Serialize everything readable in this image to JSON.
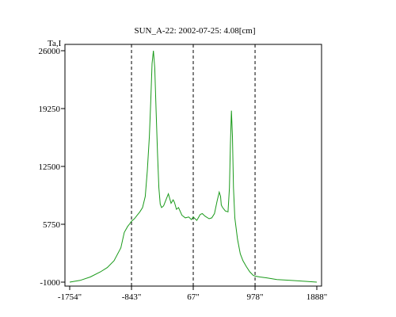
{
  "chart_data": {
    "type": "line",
    "title": "SUN_A-22: 2002-07-25: 4.08[cm]",
    "ylabel": "Ta,I",
    "xlabel": "",
    "x_tick_labels": [
      "-1754\"",
      "-843\"",
      "67\"",
      "978\"",
      "1888\""
    ],
    "x_ticks": [
      -1754,
      -843,
      67,
      978,
      1888
    ],
    "y_tick_labels": [
      "26000",
      "19250",
      "12500",
      "5750",
      "-1000"
    ],
    "y_ticks": [
      26000,
      19250,
      12500,
      5750,
      -1000
    ],
    "xlim": [
      -1754,
      1888
    ],
    "ylim": [
      -1000,
      26000
    ],
    "grid": false,
    "vertical_markers": [
      -843,
      67,
      978
    ],
    "colors": {
      "line": "#1a9a1a",
      "axes": "#000000",
      "markers": "#000000"
    },
    "series": [
      {
        "x": [
          -1754,
          -1600,
          -1450,
          -1300,
          -1200,
          -1100,
          -1000,
          -950,
          -900,
          -870,
          -843,
          -800,
          -760,
          -720,
          -680,
          -640,
          -610,
          -580,
          -560,
          -540,
          -520,
          -500,
          -480,
          -460,
          -440,
          -420,
          -400,
          -370,
          -340,
          -300,
          -260,
          -230,
          -210,
          -180,
          -150,
          -100,
          -50,
          0,
          40,
          67,
          120,
          170,
          200,
          240,
          300,
          340,
          380,
          420,
          450,
          470,
          480,
          500,
          540,
          580,
          600,
          615,
          630,
          645,
          660,
          680,
          720,
          760,
          800,
          850,
          900,
          950,
          978,
          1050,
          1150,
          1300,
          1500,
          1700,
          1888
        ],
        "y": [
          -1000,
          -800,
          -400,
          200,
          700,
          1500,
          3000,
          4800,
          5500,
          5800,
          6100,
          6400,
          6800,
          7200,
          7700,
          9000,
          12000,
          16000,
          20000,
          24500,
          26000,
          24000,
          19000,
          14000,
          10000,
          8100,
          7700,
          7900,
          8500,
          9300,
          8200,
          8600,
          8300,
          7500,
          7700,
          6800,
          6500,
          6600,
          6300,
          6600,
          6200,
          6900,
          7000,
          6700,
          6400,
          6500,
          7000,
          8500,
          9500,
          9000,
          8000,
          7700,
          7300,
          7200,
          10000,
          15000,
          19000,
          16000,
          10000,
          6500,
          4000,
          2300,
          1500,
          800,
          200,
          -200,
          -300,
          -400,
          -500,
          -700,
          -800,
          -900,
          -1000
        ]
      }
    ]
  }
}
